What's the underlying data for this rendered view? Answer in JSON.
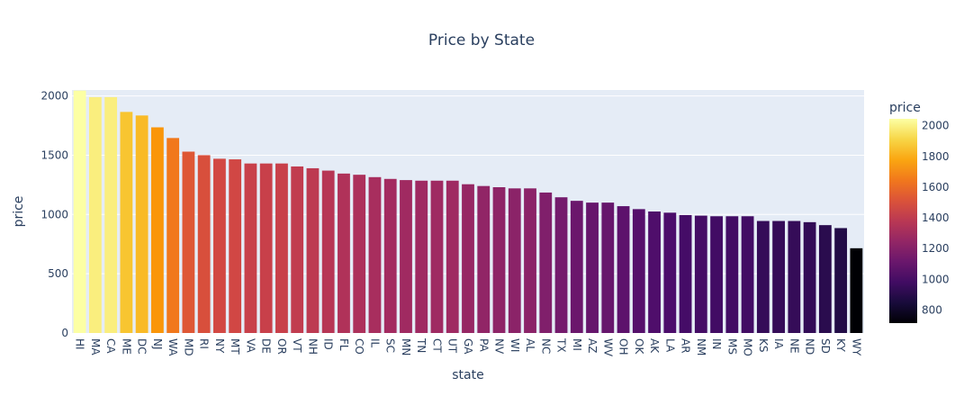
{
  "chart_data": {
    "type": "bar",
    "title": "Price by State",
    "xlabel": "state",
    "ylabel": "price",
    "ylim": [
      0,
      2050
    ],
    "yticks": [
      0,
      500,
      1000,
      1500,
      2000
    ],
    "grid": true,
    "plot_background": "#e5ecf6",
    "categories": [
      "HI",
      "MA",
      "CA",
      "ME",
      "DC",
      "NJ",
      "WA",
      "MD",
      "RI",
      "NY",
      "MT",
      "VA",
      "DE",
      "OR",
      "VT",
      "NH",
      "ID",
      "FL",
      "CO",
      "IL",
      "SC",
      "MN",
      "TN",
      "CT",
      "UT",
      "GA",
      "PA",
      "NV",
      "WI",
      "AL",
      "NC",
      "TX",
      "MI",
      "AZ",
      "WV",
      "OH",
      "OK",
      "AK",
      "LA",
      "AR",
      "NM",
      "IN",
      "MS",
      "MO",
      "KS",
      "IA",
      "NE",
      "ND",
      "SD",
      "KY",
      "WY"
    ],
    "values": [
      2045,
      1990,
      1990,
      1865,
      1835,
      1735,
      1645,
      1530,
      1500,
      1470,
      1465,
      1430,
      1430,
      1430,
      1405,
      1390,
      1370,
      1345,
      1335,
      1315,
      1300,
      1290,
      1285,
      1285,
      1285,
      1255,
      1240,
      1230,
      1220,
      1220,
      1185,
      1145,
      1115,
      1100,
      1100,
      1070,
      1045,
      1025,
      1015,
      995,
      990,
      985,
      985,
      985,
      945,
      945,
      945,
      935,
      910,
      885,
      715
    ],
    "colorbar": {
      "title": "price",
      "min": 715,
      "max": 2045,
      "ticks": [
        800,
        1000,
        1200,
        1400,
        1600,
        1800,
        2000
      ],
      "colorscale": "inferno"
    }
  }
}
